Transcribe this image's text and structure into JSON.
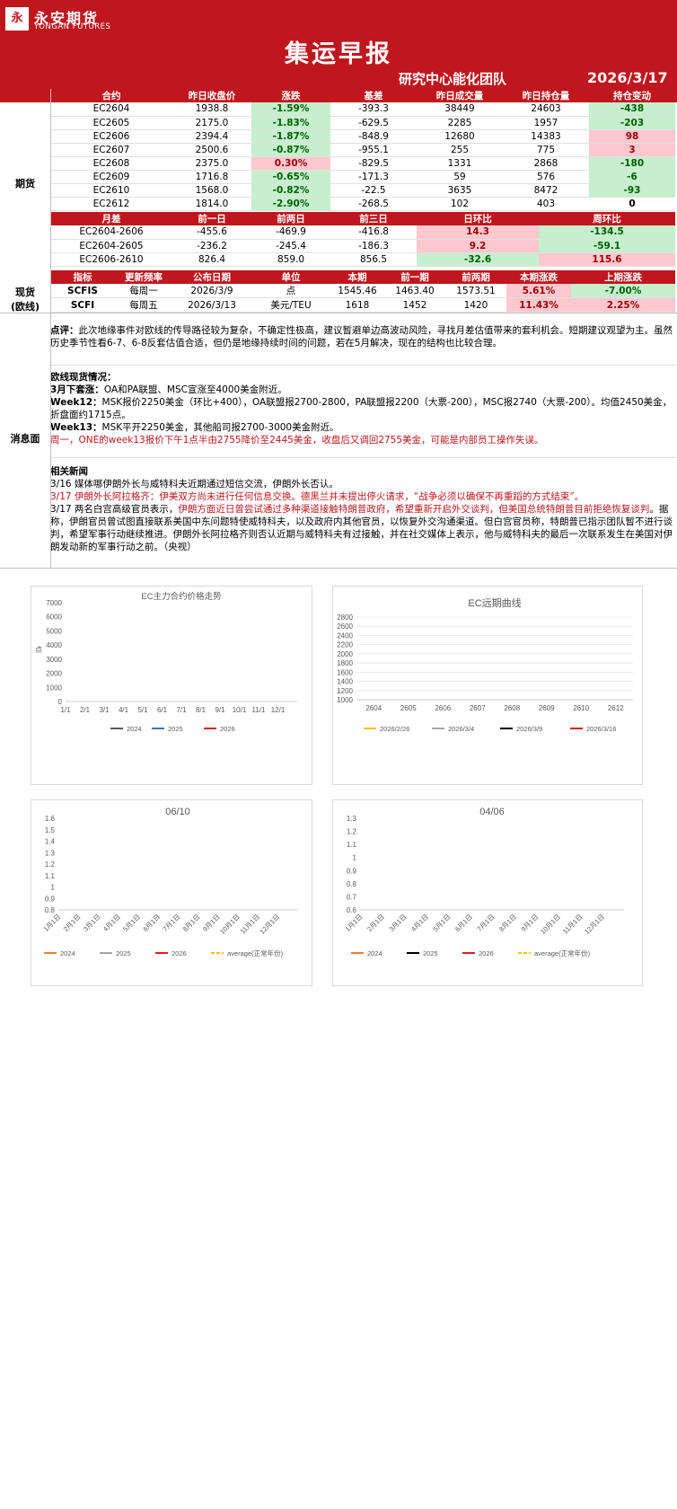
{
  "header": {
    "logo_mark": "永",
    "brand_cn": "永安期货",
    "brand_en": "YONGAN FUTURES",
    "title": "集运早报",
    "team": "研究中心能化团队",
    "date": "2026/3/17"
  },
  "futures": {
    "side_label": "期货",
    "cols": [
      "合约",
      "昨日收盘价",
      "涨跌",
      "基差",
      "昨日成交量",
      "昨日持仓量",
      "持仓变动"
    ],
    "rows": [
      {
        "c": "EC2604",
        "p": "1938.8",
        "chg": "-1.59%",
        "basis": "-393.3",
        "vol": "38449",
        "oi": "24603",
        "oic": "-438"
      },
      {
        "c": "EC2605",
        "p": "2175.0",
        "chg": "-1.83%",
        "basis": "-629.5",
        "vol": "2285",
        "oi": "1957",
        "oic": "-203"
      },
      {
        "c": "EC2606",
        "p": "2394.4",
        "chg": "-1.87%",
        "basis": "-848.9",
        "vol": "12680",
        "oi": "14383",
        "oic": "98"
      },
      {
        "c": "EC2607",
        "p": "2500.6",
        "chg": "-0.87%",
        "basis": "-955.1",
        "vol": "255",
        "oi": "775",
        "oic": "3"
      },
      {
        "c": "EC2608",
        "p": "2375.0",
        "chg": "0.30%",
        "basis": "-829.5",
        "vol": "1331",
        "oi": "2868",
        "oic": "-180"
      },
      {
        "c": "EC2609",
        "p": "1716.8",
        "chg": "-0.65%",
        "basis": "-171.3",
        "vol": "59",
        "oi": "576",
        "oic": "-6"
      },
      {
        "c": "EC2610",
        "p": "1568.0",
        "chg": "-0.82%",
        "basis": "-22.5",
        "vol": "3635",
        "oi": "8472",
        "oic": "-93"
      },
      {
        "c": "EC2612",
        "p": "1814.0",
        "chg": "-2.90%",
        "basis": "-268.5",
        "vol": "102",
        "oi": "403",
        "oic": "0"
      }
    ]
  },
  "spreads": {
    "cols": [
      "月差",
      "前一日",
      "前两日",
      "前三日",
      "日环比",
      "周环比"
    ],
    "rows": [
      {
        "n": "EC2604-2606",
        "d1": "-455.6",
        "d2": "-469.9",
        "d3": "-416.8",
        "dd": "14.3",
        "wd": "-134.5"
      },
      {
        "n": "EC2604-2605",
        "d1": "-236.2",
        "d2": "-245.4",
        "d3": "-186.3",
        "dd": "9.2",
        "wd": "-59.1"
      },
      {
        "n": "EC2606-2610",
        "d1": "826.4",
        "d2": "859.0",
        "d3": "856.5",
        "dd": "-32.6",
        "wd": "115.6"
      }
    ]
  },
  "spot": {
    "side_label_1": "现货",
    "side_label_2": "(欧线)",
    "cols": [
      "指标",
      "更新频率",
      "公布日期",
      "单位",
      "本期",
      "前一期",
      "前两期",
      "本期涨跌",
      "上期涨跌"
    ],
    "rows": [
      {
        "i": "SCFIS",
        "f": "每周一",
        "d": "2026/3/9",
        "u": "点",
        "c": "1545.46",
        "p1": "1463.40",
        "p2": "1573.51",
        "chg": "5.61%",
        "pchg": "-7.00%"
      },
      {
        "i": "SCFI",
        "f": "每周五",
        "d": "2026/3/13",
        "u": "美元/TEU",
        "c": "1618",
        "p1": "1452",
        "p2": "1420",
        "chg": "11.43%",
        "pchg": "2.25%"
      }
    ]
  },
  "news": {
    "side_label": "消息面",
    "comment_label": "点评：",
    "comment": "此次地缘事件对欧线的传导路径较为复杂，不确定性极高，建议暂避单边高波动风险，寻找月差估值带来的套利机会。短期建议观望为主。虽然历史季节性看6-7、6-8反套估值合适，但仍是地缘持续时间的问题，若在5月解决，现在的结构也比较合理。",
    "spot_title": "欧线现货情况：",
    "m3_label": "3月下套涨：",
    "m3_text": "OA和PA联盟、MSC宣涨至4000美金附近。",
    "w12_label": "Week12：",
    "w12_text": "MSK报价2250美金（环比+400），OA联盟报2700-2800，PA联盟报2200（大票-200），MSC报2740（大票-200）。均值2450美金，折盘面约1715点。",
    "w13_label": "Week13：",
    "w13_text": "MSK平开2250美金，其他船司报2700-3000美金附近。",
    "w13_red": "周一，ONE的week13报价下午1点半由2755降价至2445美金，收盘后又调回2755美金，可能是内部员工操作失误。",
    "related_title": "相关新闻",
    "n1": "3/16 媒体哪伊朗外长与威特科夫近期通过短信交流，伊朗外长否认。",
    "n2_red": "3/17 伊朗外长阿拉格齐：伊美双方尚未进行任何信息交换。德黑兰并未提出停火请求，“战争必须以确保不再重蹈的方式结束”。",
    "n3_pre": "3/17 两名白宫高级官员表示，",
    "n3_red": "伊朗方面近日曾尝试通过多种渠道接触特朗普政府，希望重新开启外交谈判，但美国总统特朗普目前拒绝恢复谈判",
    "n3_post": "。据称，伊朗官员曾试图直接联系美国中东问题特使威特科夫，以及政府内其他官员，以恢复外交沟通渠道。但白宫官员称，特朗普已指示团队暂不进行谈判，希望军事行动继续推进。伊朗外长阿拉格齐则否认近期与威特科夫有过接触，并在社交媒体上表示，他与威特科夫的最后一次联系发生在美国对伊朗发动新的军事行动之前。（央视）"
  },
  "charts": [
    {
      "title": "EC主力合约价格走势",
      "ylabel": "点",
      "y_ticks": [
        "7000",
        "6000",
        "5000",
        "4000",
        "3000",
        "2000",
        "1000",
        "0"
      ],
      "x_ticks": [
        "1/1",
        "2/1",
        "3/1",
        "4/1",
        "5/1",
        "6/1",
        "7/1",
        "8/1",
        "9/1",
        "10/1",
        "11/1",
        "12/1"
      ],
      "series": [
        {
          "name": "2024",
          "color": "#595959"
        },
        {
          "name": "2025",
          "color": "#4472c4"
        },
        {
          "name": "2026",
          "color": "#e31a1c"
        }
      ]
    },
    {
      "title": "EC远期曲线",
      "y_ticks": [
        "2800",
        "2600",
        "2400",
        "2200",
        "2000",
        "1800",
        "1600",
        "1400",
        "1200",
        "1000"
      ],
      "x_ticks": [
        "2604",
        "2605",
        "2606",
        "2607",
        "2608",
        "2609",
        "2610",
        "2612"
      ],
      "series": [
        {
          "name": "2026/2/26",
          "color": "#ffc000"
        },
        {
          "name": "2026/3/4",
          "color": "#a5a5a5"
        },
        {
          "name": "2026/3/9",
          "color": "#000000"
        },
        {
          "name": "2026/3/16",
          "color": "#e31a1c"
        }
      ]
    },
    {
      "title": "06/10",
      "y_ticks": [
        "1.6",
        "1.5",
        "1.4",
        "1.3",
        "1.2",
        "1.1",
        "1",
        "0.9",
        "0.8"
      ],
      "x_ticks": [
        "1月1日",
        "2月1日",
        "3月1日",
        "4月1日",
        "5月1日",
        "6月1日",
        "7月1日",
        "8月1日",
        "9月1日",
        "10月1日",
        "11月1日",
        "12月1日"
      ],
      "series": [
        {
          "name": "2024",
          "color": "#ed7d31"
        },
        {
          "name": "2025",
          "color": "#a5a5a5"
        },
        {
          "name": "2026",
          "color": "#e31a1c"
        },
        {
          "name": "average(正常年份)",
          "color": "#ffc000"
        }
      ]
    },
    {
      "title": "04/06",
      "y_ticks": [
        "1.3",
        "1.2",
        "1.1",
        "1",
        "0.9",
        "0.8",
        "0.7",
        "0.6"
      ],
      "x_ticks": [
        "1月1日",
        "2月1日",
        "3月1日",
        "4月1日",
        "5月1日",
        "6月1日",
        "7月1日",
        "8月1日",
        "9月1日",
        "10月1日",
        "11月1日",
        "12月1日"
      ],
      "series": [
        {
          "name": "2024",
          "color": "#ed7d31"
        },
        {
          "name": "2025",
          "color": "#000000"
        },
        {
          "name": "2026",
          "color": "#e31a1c"
        },
        {
          "name": "average(正常年份)",
          "color": "#ffc000"
        }
      ]
    }
  ]
}
